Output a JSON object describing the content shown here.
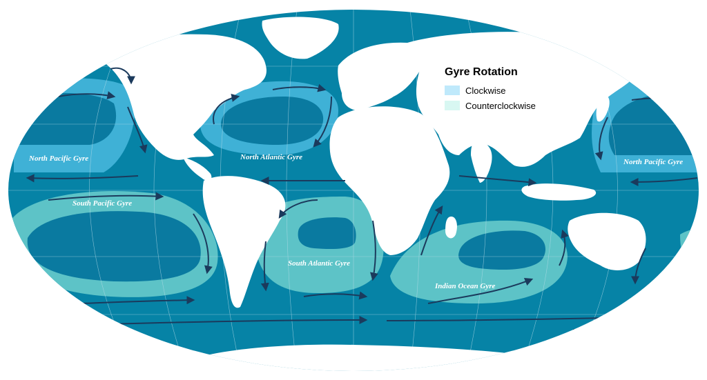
{
  "colors": {
    "ocean": "#0683a6",
    "ocean_deep": "#0a7aa0",
    "land": "#ffffff",
    "clockwise_fill": "#3fb1d6",
    "counterclockwise_fill": "#5dc3c7",
    "arrow": "#1b3a5c",
    "grid": "#b8dce8",
    "legend_clockwise": "#bfe9fb",
    "legend_counterclockwise": "#d8f7f2"
  },
  "legend": {
    "title": "Gyre Rotation",
    "items": [
      {
        "label": "Clockwise",
        "color": "#bfe9fb"
      },
      {
        "label": "Counterclockwise",
        "color": "#d8f7f2"
      }
    ]
  },
  "gyres": [
    {
      "name": "North Pacific Gyre",
      "rotation": "clockwise"
    },
    {
      "name": "North Atlantic Gyre",
      "rotation": "clockwise"
    },
    {
      "name": "North Pacific Gyre",
      "rotation": "clockwise"
    },
    {
      "name": "South Pacific Gyre",
      "rotation": "counterclockwise"
    },
    {
      "name": "South Atlantic Gyre",
      "rotation": "counterclockwise"
    },
    {
      "name": "Indian Ocean Gyre",
      "rotation": "counterclockwise"
    }
  ]
}
